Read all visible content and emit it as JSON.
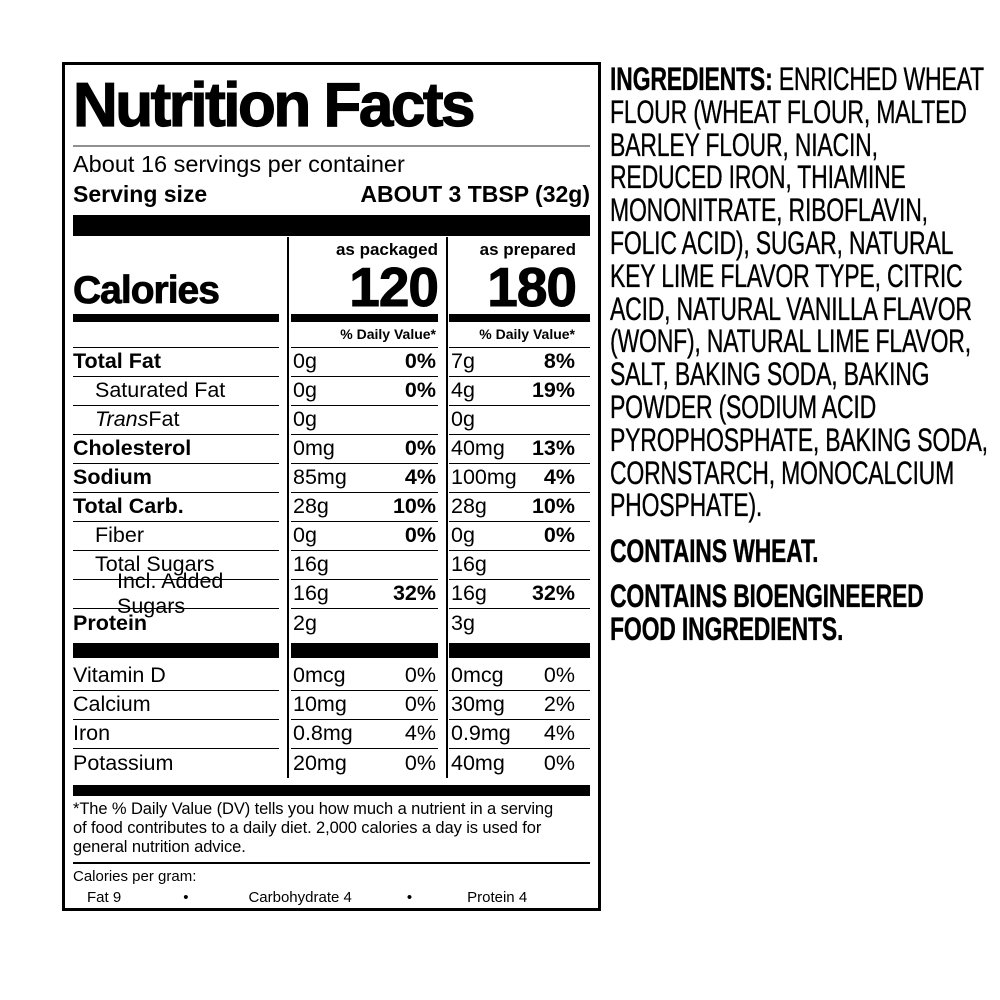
{
  "label": {
    "title": "Nutrition Facts",
    "servings_per_container": "About 16 servings per container",
    "serving_size_label": "Serving size",
    "serving_size_value": "ABOUT 3 TBSP (32g)",
    "col_headers": {
      "packaged": "as packaged",
      "prepared": "as prepared"
    },
    "calories_label": "Calories",
    "calories_packaged": "120",
    "calories_prepared": "180",
    "daily_value_header": "% Daily Value*",
    "rows": [
      {
        "name": "Total Fat",
        "pkg_amt": "0g",
        "pkg_dv": "0%",
        "prep_amt": "7g",
        "prep_dv": "8%"
      },
      {
        "name": "Saturated Fat",
        "pkg_amt": "0g",
        "pkg_dv": "0%",
        "prep_amt": "4g",
        "prep_dv": "19%"
      },
      {
        "name_italic": "Trans",
        "name_rest": " Fat",
        "pkg_amt": "0g",
        "pkg_dv": "",
        "prep_amt": "0g",
        "prep_dv": ""
      },
      {
        "name": "Cholesterol",
        "pkg_amt": "0mg",
        "pkg_dv": "0%",
        "prep_amt": "40mg",
        "prep_dv": "13%"
      },
      {
        "name": "Sodium",
        "pkg_amt": "85mg",
        "pkg_dv": "4%",
        "prep_amt": "100mg",
        "prep_dv": "4%"
      },
      {
        "name": "Total Carb.",
        "pkg_amt": "28g",
        "pkg_dv": "10%",
        "prep_amt": "28g",
        "prep_dv": "10%"
      },
      {
        "name": "Fiber",
        "pkg_amt": "0g",
        "pkg_dv": "0%",
        "prep_amt": "0g",
        "prep_dv": "0%"
      },
      {
        "name": "Total Sugars",
        "pkg_amt": "16g",
        "pkg_dv": "",
        "prep_amt": "16g",
        "prep_dv": ""
      },
      {
        "name": "Incl. Added Sugars",
        "pkg_amt": "16g",
        "pkg_dv": "32%",
        "prep_amt": "16g",
        "prep_dv": "32%"
      },
      {
        "name": "Protein",
        "pkg_amt": "2g",
        "pkg_dv": "",
        "prep_amt": "3g",
        "prep_dv": ""
      }
    ],
    "vitamin_rows": [
      {
        "name": "Vitamin D",
        "pkg_amt": "0mcg",
        "pkg_dv": "0%",
        "prep_amt": "0mcg",
        "prep_dv": "0%"
      },
      {
        "name": "Calcium",
        "pkg_amt": "10mg",
        "pkg_dv": "0%",
        "prep_amt": "30mg",
        "prep_dv": "2%"
      },
      {
        "name": "Iron",
        "pkg_amt": "0.8mg",
        "pkg_dv": "4%",
        "prep_amt": "0.9mg",
        "prep_dv": "4%"
      },
      {
        "name": "Potassium",
        "pkg_amt": "20mg",
        "pkg_dv": "0%",
        "prep_amt": "40mg",
        "prep_dv": "0%"
      }
    ],
    "footnote": "*The % Daily Value (DV) tells you how much a nutrient in a serving\nof food contributes to a daily diet. 2,000 calories a day is used for\ngeneral nutrition advice.",
    "calories_per_gram": {
      "label": "Calories per gram:",
      "fat": "Fat 9",
      "bullet": "•",
      "carbohydrate": "Carbohydrate 4",
      "protein": "Protein 4"
    }
  },
  "ingredients": {
    "heading": "INGREDIENTS:",
    "text": "ENRICHED WHEAT\nFLOUR (WHEAT FLOUR, MALTED\nBARLEY FLOUR, NIACIN,\nREDUCED IRON, THIAMINE\nMONONITRATE, RIBOFLAVIN,\nFOLIC ACID), SUGAR, NATURAL\nKEY LIME FLAVOR TYPE, CITRIC\nACID, NATURAL VANILLA FLAVOR\n(WONF), NATURAL LIME FLAVOR,\nSALT, BAKING SODA, BAKING\nPOWDER (SODIUM ACID\nPYROPHOSPHATE, BAKING SODA,\nCORNSTARCH, MONOCALCIUM\nPHOSPHATE).",
    "contains": "CONTAINS WHEAT.",
    "bioengineered": "CONTAINS BIOENGINEERED\nFOOD INGREDIENTS."
  },
  "colors": {
    "ink": "#000000",
    "title_rule": "#909090",
    "background": "#ffffff"
  }
}
